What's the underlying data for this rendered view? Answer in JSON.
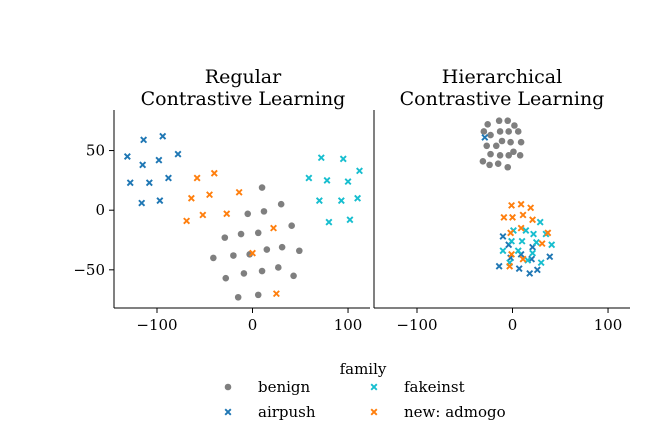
{
  "chart_data": [
    {
      "type": "scatter",
      "title_lines": [
        "Regular",
        "Contrastive Learning"
      ],
      "xlabel": "",
      "ylabel": "",
      "xlim": [
        -145,
        123
      ],
      "ylim": [
        -82,
        84
      ],
      "xticks": [
        -100,
        0,
        100
      ],
      "xtick_labels": [
        "−100",
        "0",
        "100"
      ],
      "yticks": [
        50,
        0,
        -50
      ],
      "ytick_labels": [
        "50",
        "0",
        "−50"
      ],
      "grid": false,
      "series": [
        {
          "name": "benign",
          "marker": "circle",
          "color": "#7f7f7f",
          "points": [
            [
              10,
              19
            ],
            [
              -5,
              -3
            ],
            [
              12,
              -1
            ],
            [
              30,
              5
            ],
            [
              41,
              -13
            ],
            [
              -29,
              -23
            ],
            [
              -12,
              -20
            ],
            [
              6,
              -19
            ],
            [
              -20,
              -38
            ],
            [
              -3,
              -37
            ],
            [
              15,
              -33
            ],
            [
              31,
              -31
            ],
            [
              49,
              -34
            ],
            [
              -41,
              -40
            ],
            [
              27,
              -48
            ],
            [
              10,
              -51
            ],
            [
              -9,
              -53
            ],
            [
              -28,
              -57
            ],
            [
              43,
              -55
            ],
            [
              -15,
              -73
            ],
            [
              6,
              -71
            ]
          ]
        },
        {
          "name": "airpush",
          "marker": "x",
          "color": "#1f77b4",
          "points": [
            [
              -94,
              62
            ],
            [
              -114,
              59
            ],
            [
              -131,
              45
            ],
            [
              -115,
              38
            ],
            [
              -98,
              42
            ],
            [
              -78,
              47
            ],
            [
              -88,
              27
            ],
            [
              -108,
              23
            ],
            [
              -128,
              23
            ],
            [
              -116,
              6
            ],
            [
              -97,
              8
            ]
          ]
        },
        {
          "name": "fakeinst",
          "marker": "x",
          "color": "#17becf",
          "points": [
            [
              72,
              44
            ],
            [
              95,
              43
            ],
            [
              112,
              33
            ],
            [
              59,
              27
            ],
            [
              78,
              25
            ],
            [
              100,
              24
            ],
            [
              110,
              10
            ],
            [
              70,
              8
            ],
            [
              93,
              8
            ],
            [
              80,
              -10
            ],
            [
              102,
              -8
            ]
          ]
        },
        {
          "name": "new: admogo",
          "marker": "x",
          "color": "#ff7f0e",
          "points": [
            [
              -40,
              31
            ],
            [
              -58,
              27
            ],
            [
              -14,
              15
            ],
            [
              -45,
              13
            ],
            [
              -64,
              10
            ],
            [
              -52,
              -4
            ],
            [
              -27,
              -3
            ],
            [
              -69,
              -9
            ],
            [
              22,
              -15
            ],
            [
              0,
              -36
            ],
            [
              25,
              -70
            ]
          ]
        }
      ]
    },
    {
      "type": "scatter",
      "title_lines": [
        "Hierarchical",
        "Contrastive Learning"
      ],
      "xlabel": "",
      "ylabel": "",
      "xlim": [
        -145,
        123
      ],
      "ylim": [
        -82,
        84
      ],
      "xticks": [
        -100,
        0,
        100
      ],
      "xtick_labels": [
        "−100",
        "0",
        "100"
      ],
      "grid": false,
      "series": [
        {
          "name": "benign",
          "marker": "circle",
          "color": "#7f7f7f",
          "points": [
            [
              -14,
              75
            ],
            [
              -5,
              75
            ],
            [
              -26,
              72
            ],
            [
              2,
              71
            ],
            [
              -30,
              66
            ],
            [
              -13,
              66
            ],
            [
              -4,
              66
            ],
            [
              6,
              66
            ],
            [
              -23,
              63
            ],
            [
              -11,
              58
            ],
            [
              -2,
              57
            ],
            [
              9,
              57
            ],
            [
              -27,
              54
            ],
            [
              -17,
              54
            ],
            [
              1,
              49
            ],
            [
              -13,
              46
            ],
            [
              -23,
              47
            ],
            [
              -4,
              46
            ],
            [
              8,
              46
            ],
            [
              -31,
              41
            ],
            [
              -15,
              39
            ],
            [
              -5,
              36
            ],
            [
              -24,
              38
            ]
          ]
        },
        {
          "name": "airpush",
          "marker": "x",
          "color": "#1f77b4",
          "points": [
            [
              -29,
              61
            ],
            [
              -10,
              -22
            ],
            [
              -4,
              -29
            ],
            [
              9,
              -37
            ],
            [
              21,
              -31
            ],
            [
              -2,
              -40
            ],
            [
              20,
              -41
            ],
            [
              39,
              -39
            ],
            [
              -14,
              -47
            ],
            [
              7,
              -49
            ],
            [
              26,
              -50
            ],
            [
              18,
              -53
            ]
          ]
        },
        {
          "name": "fakeinst",
          "marker": "x",
          "color": "#17becf",
          "points": [
            [
              29,
              -10
            ],
            [
              1,
              -17
            ],
            [
              14,
              -17
            ],
            [
              22,
              -20
            ],
            [
              35,
              -20
            ],
            [
              -1,
              -26
            ],
            [
              10,
              -26
            ],
            [
              25,
              -27
            ],
            [
              41,
              -29
            ],
            [
              -10,
              -34
            ],
            [
              6,
              -34
            ],
            [
              21,
              -36
            ],
            [
              16,
              -42
            ],
            [
              -3,
              -44
            ],
            [
              30,
              -44
            ]
          ]
        },
        {
          "name": "new: admogo",
          "marker": "x",
          "color": "#ff7f0e",
          "points": [
            [
              -1,
              4
            ],
            [
              9,
              5
            ],
            [
              19,
              2
            ],
            [
              -9,
              -6
            ],
            [
              0,
              -6
            ],
            [
              11,
              -4
            ],
            [
              21,
              -8
            ],
            [
              9,
              -15
            ],
            [
              -2,
              -19
            ],
            [
              37,
              -19
            ],
            [
              31,
              -28
            ],
            [
              -1,
              -37
            ],
            [
              11,
              -41
            ],
            [
              -3,
              -47
            ]
          ]
        }
      ]
    }
  ],
  "legend": {
    "title": "family",
    "placement": "bottom-center",
    "entries": [
      {
        "label": "benign",
        "marker": "circle",
        "color": "#7f7f7f"
      },
      {
        "label": "fakeinst",
        "marker": "x",
        "color": "#17becf"
      },
      {
        "label": "airpush",
        "marker": "x",
        "color": "#1f77b4"
      },
      {
        "label": "new: admogo",
        "marker": "x",
        "color": "#ff7f0e"
      }
    ]
  }
}
